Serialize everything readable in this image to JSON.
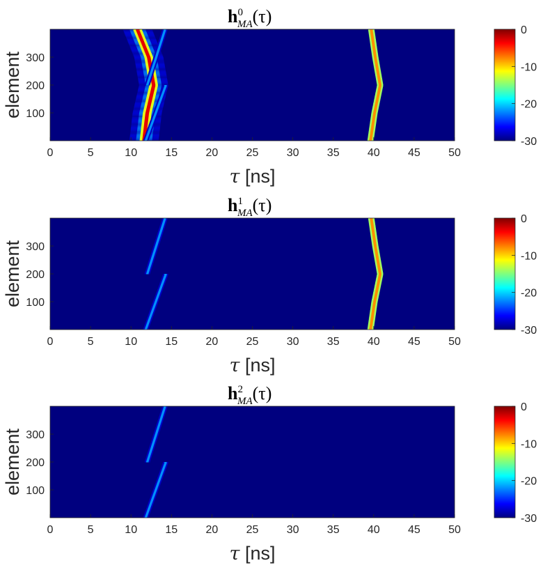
{
  "colors": {
    "background_min": "#00007f",
    "colormap": [
      "#00007f",
      "#0000ff",
      "#007fff",
      "#00ffff",
      "#7fff7f",
      "#ffff00",
      "#ff7f00",
      "#ff0000",
      "#7f0000"
    ]
  },
  "chart_data": [
    {
      "type": "heatmap",
      "title": {
        "main": "h",
        "sup": "0",
        "sub": "MA",
        "arg": "(τ)"
      },
      "xlabel": {
        "symbol": "τ",
        "unit": " [ns]"
      },
      "ylabel": "element",
      "xlim": [
        0,
        50
      ],
      "ylim": [
        0,
        400
      ],
      "xticks": [
        0,
        5,
        10,
        15,
        20,
        25,
        30,
        35,
        40,
        45,
        50
      ],
      "yticks": [
        100,
        200,
        300
      ],
      "colorbar": {
        "range": [
          -30,
          0
        ],
        "ticks": [
          0,
          -10,
          -20,
          -30
        ]
      },
      "series": [
        {
          "name": "",
          "level_db": -3,
          "width_ns": 0.45,
          "points": [
            [
              11.6,
              0
            ],
            [
              12.0,
              100
            ],
            [
              12.8,
              200
            ],
            [
              12.2,
              300
            ],
            [
              10.8,
              400
            ]
          ],
          "fringes": true
        },
        {
          "name": "",
          "level_db": -22,
          "width_ns": 0.3,
          "points": [
            [
              11.8,
              0
            ],
            [
              14.3,
              200
            ]
          ]
        },
        {
          "name": "",
          "level_db": -22,
          "width_ns": 0.3,
          "points": [
            [
              12.0,
              200
            ],
            [
              14.2,
              400
            ]
          ]
        },
        {
          "name": "",
          "level_db": -8,
          "width_ns": 0.35,
          "points": [
            [
              39.6,
              0
            ],
            [
              40.1,
              100
            ],
            [
              40.8,
              200
            ],
            [
              40.2,
              300
            ],
            [
              39.7,
              400
            ]
          ]
        }
      ]
    },
    {
      "type": "heatmap",
      "title": {
        "main": "h",
        "sup": "1",
        "sub": "MA",
        "arg": "(τ)"
      },
      "xlabel": {
        "symbol": "τ",
        "unit": " [ns]"
      },
      "ylabel": "element",
      "xlim": [
        0,
        50
      ],
      "ylim": [
        0,
        400
      ],
      "xticks": [
        0,
        5,
        10,
        15,
        20,
        25,
        30,
        35,
        40,
        45,
        50
      ],
      "yticks": [
        100,
        200,
        300
      ],
      "colorbar": {
        "range": [
          -30,
          0
        ],
        "ticks": [
          0,
          -10,
          -20,
          -30
        ]
      },
      "series": [
        {
          "name": "",
          "level_db": -22,
          "width_ns": 0.3,
          "points": [
            [
              11.8,
              0
            ],
            [
              14.3,
              200
            ]
          ]
        },
        {
          "name": "",
          "level_db": -22,
          "width_ns": 0.3,
          "points": [
            [
              12.0,
              200
            ],
            [
              14.2,
              400
            ]
          ]
        },
        {
          "name": "",
          "level_db": -8,
          "width_ns": 0.35,
          "points": [
            [
              39.6,
              0
            ],
            [
              40.1,
              100
            ],
            [
              40.8,
              200
            ],
            [
              40.2,
              300
            ],
            [
              39.7,
              400
            ]
          ]
        }
      ]
    },
    {
      "type": "heatmap",
      "title": {
        "main": "h",
        "sup": "2",
        "sub": "MA",
        "arg": "(τ)"
      },
      "xlabel": {
        "symbol": "τ",
        "unit": " [ns]"
      },
      "ylabel": "element",
      "xlim": [
        0,
        50
      ],
      "ylim": [
        0,
        400
      ],
      "xticks": [
        0,
        5,
        10,
        15,
        20,
        25,
        30,
        35,
        40,
        45,
        50
      ],
      "yticks": [
        100,
        200,
        300
      ],
      "colorbar": {
        "range": [
          -30,
          0
        ],
        "ticks": [
          0,
          -10,
          -20,
          -30
        ]
      },
      "series": [
        {
          "name": "",
          "level_db": -22,
          "width_ns": 0.3,
          "points": [
            [
              11.8,
              0
            ],
            [
              14.3,
              200
            ]
          ]
        },
        {
          "name": "",
          "level_db": -22,
          "width_ns": 0.3,
          "points": [
            [
              12.0,
              200
            ],
            [
              14.2,
              400
            ]
          ]
        }
      ]
    }
  ]
}
